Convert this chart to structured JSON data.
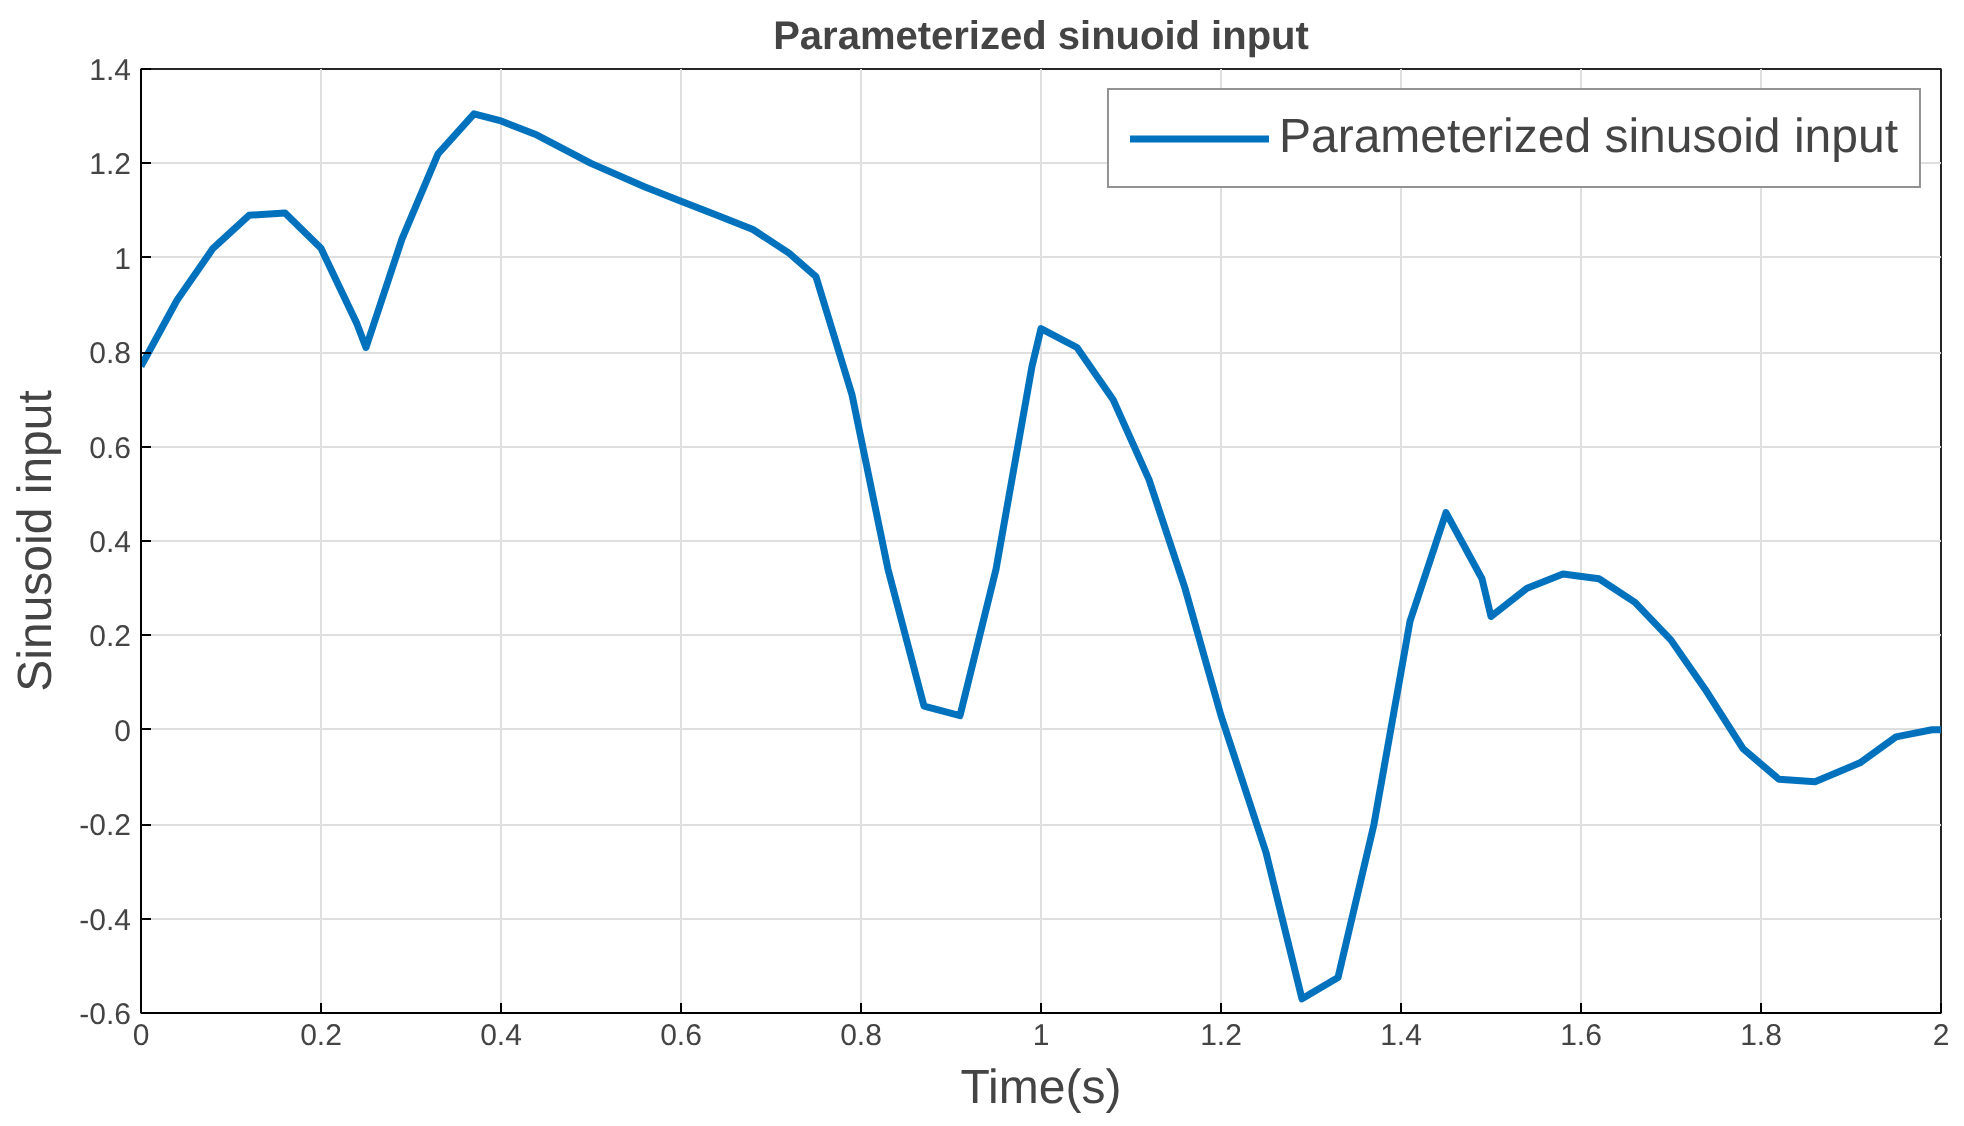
{
  "chart_data": {
    "type": "line",
    "title": "Parameterized sinuoid input",
    "xlabel": "Time(s)",
    "ylabel": "Sinusoid input",
    "xlim": [
      0,
      2
    ],
    "xticks": [
      0,
      0.2,
      0.4,
      0.6,
      0.8,
      1,
      1.2,
      1.4,
      1.6,
      1.8,
      2
    ],
    "ylim": [
      -0.6,
      1.4
    ],
    "yticks": [
      -0.6,
      -0.4,
      -0.2,
      0,
      0.2,
      0.4,
      0.6,
      0.8,
      1,
      1.2,
      1.4
    ],
    "grid": true,
    "legend": "top right",
    "marker": "none",
    "line_style": "solid",
    "x": [
      0,
      0.04,
      0.08,
      0.12,
      0.16,
      0.2,
      0.24,
      0.25,
      0.29,
      0.33,
      0.37,
      0.4,
      0.44,
      0.5,
      0.56,
      0.6,
      0.64,
      0.68,
      0.72,
      0.75,
      0.79,
      0.83,
      0.87,
      0.91,
      0.95,
      0.99,
      1.0,
      1.04,
      1.08,
      1.12,
      1.16,
      1.2,
      1.25,
      1.29,
      1.33,
      1.37,
      1.41,
      1.45,
      1.49,
      1.5,
      1.54,
      1.58,
      1.62,
      1.66,
      1.7,
      1.74,
      1.78,
      1.82,
      1.86,
      1.91,
      1.95,
      1.99,
      2.0
    ],
    "series": [
      {
        "name": "Parameterized sinusoid input",
        "color": "#0072bd",
        "values": [
          0.77,
          0.91,
          1.02,
          1.09,
          1.095,
          1.02,
          0.86,
          0.81,
          1.04,
          1.22,
          1.305,
          1.29,
          1.26,
          1.2,
          1.15,
          1.12,
          1.09,
          1.06,
          1.01,
          0.96,
          0.71,
          0.34,
          0.05,
          0.03,
          0.34,
          0.77,
          0.85,
          0.81,
          0.7,
          0.53,
          0.3,
          0.03,
          -0.26,
          -0.57,
          -0.525,
          -0.2,
          0.23,
          0.46,
          0.32,
          0.24,
          0.3,
          0.33,
          0.32,
          0.27,
          0.19,
          0.08,
          -0.04,
          -0.105,
          -0.11,
          -0.07,
          -0.015,
          0.0,
          0.0
        ]
      }
    ]
  }
}
